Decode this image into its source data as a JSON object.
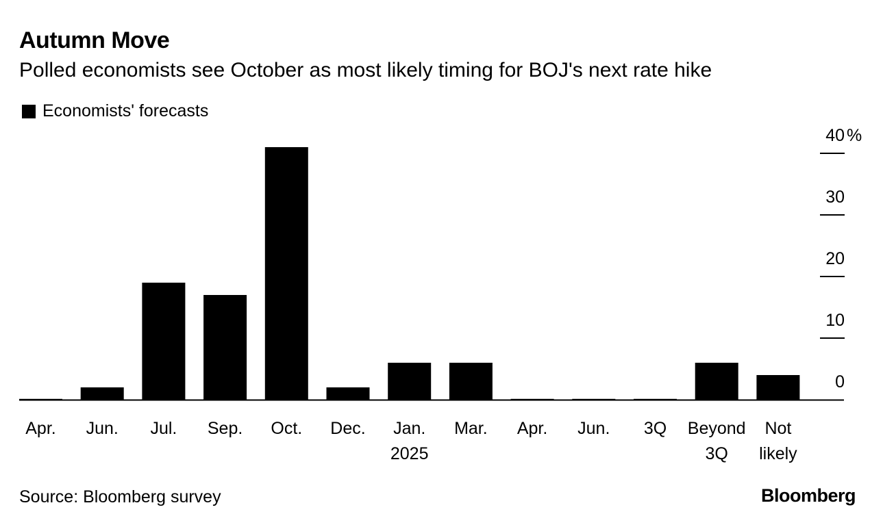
{
  "header": {
    "title": "Autumn Move",
    "subtitle": "Polled economists see October as most likely timing for BOJ's next rate hike"
  },
  "legend": {
    "label": "Economists' forecasts"
  },
  "footer": {
    "source": "Source: Bloomberg survey",
    "brand": "Bloomberg"
  },
  "colors": {
    "bar": "#000000",
    "axis": "#000000",
    "text": "#000000"
  },
  "chart_data": {
    "type": "bar",
    "categories": [
      [
        "Apr."
      ],
      [
        "Jun."
      ],
      [
        "Jul."
      ],
      [
        "Sep."
      ],
      [
        "Oct."
      ],
      [
        "Dec."
      ],
      [
        "Jan.",
        "2025"
      ],
      [
        "Mar."
      ],
      [
        "Apr."
      ],
      [
        "Jun."
      ],
      [
        "3Q"
      ],
      [
        "Beyond",
        "3Q"
      ],
      [
        "Not",
        "likely"
      ]
    ],
    "series": [
      {
        "name": "Economists' forecasts",
        "values": [
          0,
          2,
          19,
          17,
          41,
          2,
          6,
          6,
          0,
          0,
          0,
          6,
          4
        ]
      }
    ],
    "ylim": [
      0,
      40
    ],
    "yticks": [
      0,
      10,
      20,
      30,
      40
    ],
    "yunit": "%",
    "yaxis_position": "right",
    "legend_position": "top-left",
    "grid": false
  }
}
